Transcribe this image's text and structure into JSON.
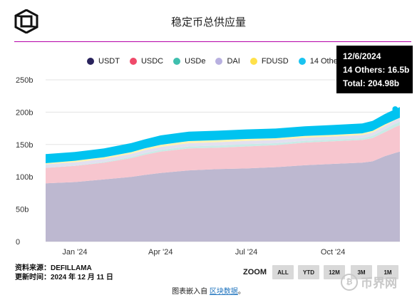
{
  "header": {
    "title": "稳定币总供应量"
  },
  "chart_data": {
    "type": "area",
    "stacked": true,
    "title": "稳定币总供应量",
    "xlabel": "",
    "ylabel": "",
    "ylim": [
      0,
      250
    ],
    "yticks": [
      {
        "v": 0,
        "label": "0"
      },
      {
        "v": 50,
        "label": "50b"
      },
      {
        "v": 100,
        "label": "100b"
      },
      {
        "v": 150,
        "label": "150b"
      },
      {
        "v": 200,
        "label": "200b"
      },
      {
        "v": 250,
        "label": "250b"
      }
    ],
    "xdomain": [
      "2023-12-01",
      "2024-12-11"
    ],
    "xticks": [
      {
        "date": "2024-01-01",
        "label": "Jan '24"
      },
      {
        "date": "2024-04-01",
        "label": "Apr '24"
      },
      {
        "date": "2024-07-01",
        "label": "Jul '24"
      },
      {
        "date": "2024-10-01",
        "label": "Oct '24"
      }
    ],
    "grid": true,
    "legend_position": "top",
    "x": [
      "2023-12-01",
      "2024-01-01",
      "2024-02-01",
      "2024-03-01",
      "2024-03-15",
      "2024-04-01",
      "2024-05-01",
      "2024-06-01",
      "2024-07-01",
      "2024-08-01",
      "2024-09-01",
      "2024-10-01",
      "2024-11-01",
      "2024-11-12",
      "2024-11-25",
      "2024-12-06",
      "2024-12-11"
    ],
    "series": [
      {
        "name": "USDT",
        "color": "#bdb8d0",
        "values": [
          90,
          92,
          96,
          100,
          103,
          106,
          110,
          112,
          113,
          115,
          118,
          120,
          122,
          124,
          132,
          137,
          139
        ]
      },
      {
        "name": "USDC",
        "color": "#f7c6cf",
        "values": [
          24,
          25,
          26,
          29,
          31,
          33,
          34,
          33,
          34,
          34,
          35,
          35,
          35,
          36,
          37,
          40,
          41
        ]
      },
      {
        "name": "USDe",
        "color": "#c9ebe6",
        "values": [
          0.3,
          0.6,
          1,
          2,
          2.5,
          2.6,
          3,
          3.5,
          3.5,
          3,
          2.7,
          2.6,
          2.8,
          3.5,
          4.5,
          5.2,
          5.4
        ]
      },
      {
        "name": "DAI",
        "color": "#e2e0f0",
        "values": [
          5.2,
          5.0,
          4.8,
          4.7,
          4.7,
          4.8,
          5.0,
          5.1,
          5.1,
          4.9,
          4.8,
          4.8,
          4.9,
          5.0,
          5.2,
          5.3,
          5.3
        ]
      },
      {
        "name": "FDUSD",
        "color": "#fff3b3",
        "values": [
          1.6,
          2.3,
          2.6,
          2.5,
          2.7,
          3.2,
          3.3,
          3.2,
          3.0,
          2.8,
          2.7,
          2.6,
          2.6,
          2.7,
          2.4,
          0.7,
          0.7
        ]
      },
      {
        "name": "14 Others",
        "color": "#00c3f0",
        "values": [
          14,
          13.5,
          13.5,
          14,
          14,
          14.5,
          14.6,
          14.6,
          14.8,
          15,
          15,
          15.2,
          15.3,
          15.4,
          16,
          16.5,
          16.4
        ]
      }
    ],
    "tooltip": {
      "date": "12/6/2024",
      "line1": "14 Others: 16.5b",
      "line2": "Total: 204.98b",
      "x": "2024-12-06"
    }
  },
  "legend_dot_colors": {
    "USDT": "#29235c",
    "USDC": "#ef4a6a",
    "USDe": "#3fbfae",
    "DAI": "#b8b0e0",
    "FDUSD": "#ffe14a",
    "14 Others": "#19c3f0"
  },
  "footer": {
    "source_line": "资料来源：DEFILLAMA",
    "updated_line": "更新时间：2024 年 12 月 11 日",
    "zoom_label": "ZOOM",
    "zoom_buttons": [
      "ALL",
      "YTD",
      "12M",
      "3M",
      "1M"
    ],
    "embed_prefix": "图表嵌入自 ",
    "embed_link": "区块数据",
    "embed_suffix": "。",
    "watermark": "币界网"
  }
}
